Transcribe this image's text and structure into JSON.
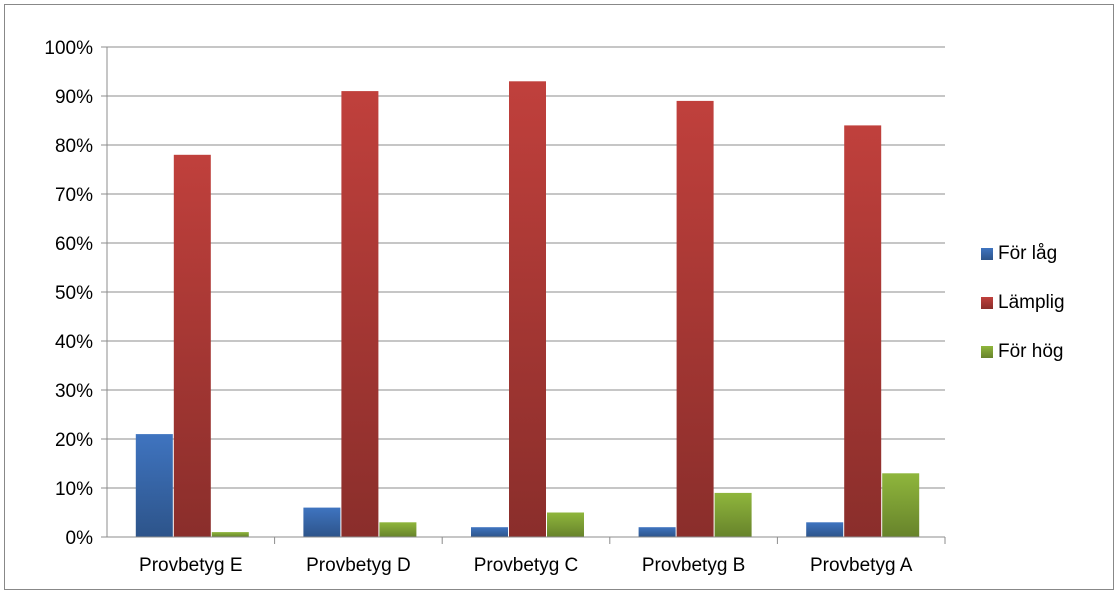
{
  "chart_data": {
    "type": "bar",
    "title": "",
    "xlabel": "",
    "ylabel": "",
    "categories": [
      "Provbetyg E",
      "Provbetyg D",
      "Provbetyg C",
      "Provbetyg B",
      "Provbetyg A"
    ],
    "series": [
      {
        "name": "För låg",
        "values": [
          21,
          6,
          2,
          2,
          3
        ],
        "color": "#3f74c0"
      },
      {
        "name": "Lämplig",
        "values": [
          78,
          91,
          93,
          89,
          84
        ],
        "color": "#c0403c"
      },
      {
        "name": "För hög",
        "values": [
          1,
          3,
          5,
          9,
          13
        ],
        "color": "#8fb63c"
      }
    ],
    "ylim": [
      0,
      100
    ],
    "yticks": [
      0,
      10,
      20,
      30,
      40,
      50,
      60,
      70,
      80,
      90,
      100
    ],
    "ytick_labels": [
      "0%",
      "10%",
      "20%",
      "30%",
      "40%",
      "50%",
      "60%",
      "70%",
      "80%",
      "90%",
      "100%"
    ],
    "grid": true,
    "legend_position": "right"
  }
}
